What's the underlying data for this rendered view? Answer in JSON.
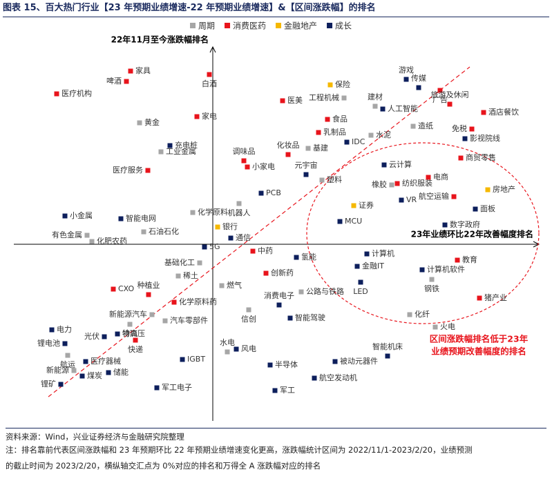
{
  "header": {
    "title": "图表 15、百大热门行业【23 年预期业绩增速-22 年预期业绩增速】&【区间涨跌幅】的排名"
  },
  "chart_data": {
    "type": "scatter",
    "y_label": "22年11月至今涨跌幅排名",
    "x_label": "23年业绩环比22年改善幅度排名",
    "annotation": [
      "区间涨跌幅排名低于23年",
      "业绩预期改善幅度的排名"
    ],
    "xlim": [
      -288,
      472
    ],
    "ylim": [
      -256,
      304
    ],
    "legend": "top",
    "series": [
      {
        "name": "周期",
        "color": "#a6a6a6",
        "labels": [
          "黄金",
          "工业金属",
          "工程机械",
          "建材",
          "造纸",
          "水泥",
          "基建",
          "塑料",
          "橡胶",
          "机器人",
          "化学原料",
          "石油石化",
          "有色金属",
          "化肥农药",
          "基础化工",
          "稀土",
          "燃气",
          "钢铁",
          "公路与铁路",
          "信创",
          "新能源汽车",
          "汽车零部件",
          "化纤",
          "物流",
          "火电",
          "水电",
          "航运",
          "新能源"
        ],
        "x": [
          -106,
          -75,
          190,
          235,
          290,
          229,
          138,
          158,
          259,
          38,
          -29,
          -100,
          -182,
          -175,
          -19,
          -50,
          13,
          317,
          128,
          52,
          -88,
          -69,
          285,
          -120,
          322,
          21,
          -210,
          -201
        ],
        "y": [
          176,
          134,
          212,
          200,
          171,
          158,
          139,
          93,
          86,
          59,
          46,
          18,
          13,
          4,
          -27,
          -46,
          -60,
          -51,
          -69,
          -95,
          -102,
          -111,
          -102,
          -116,
          -120,
          -156,
          -161,
          -183
        ]
      },
      {
        "name": "消费医药",
        "color": "#e8141c",
        "labels": [
          "家具",
          "啤酒",
          "医疗机构",
          "白酒",
          "家电",
          "医疗服务",
          "调味品",
          "小家电",
          "化妆品",
          "医美",
          "广告",
          "旅游及休闲",
          "酒店餐饮",
          "食品",
          "乳制品",
          "免税",
          "商贸零售",
          "电商",
          "纺织服装",
          "航空运输",
          "中药",
          "教育",
          "创新药",
          "CXO",
          "种植业",
          "化学原料药",
          "猪产业",
          "快递"
        ],
        "x": [
          -119,
          -125,
          -226,
          -5,
          -23,
          -94,
          45,
          50,
          109,
          101,
          329,
          343,
          392,
          166,
          153,
          375,
          359,
          312,
          267,
          349,
          58,
          354,
          77,
          -144,
          -93,
          -56,
          386,
          -112
        ],
        "y": [
          251,
          236,
          218,
          246,
          185,
          107,
          121,
          112,
          130,
          208,
          223,
          203,
          191,
          181,
          162,
          167,
          125,
          97,
          88,
          69,
          -10,
          -23,
          -42,
          -65,
          -73,
          -84,
          -78,
          -139
        ]
      },
      {
        "name": "金融地产",
        "color": "#f5b800",
        "labels": [
          "保险",
          "房地产",
          "证券",
          "银行"
        ],
        "x": [
          170,
          398,
          204,
          7
        ],
        "y": [
          231,
          79,
          56,
          25
        ]
      },
      {
        "name": "成长",
        "color": "#0d1f5c",
        "labels": [
          "充电桩",
          "元宇宙",
          "人工智能",
          "游戏",
          "传媒",
          "影视院线",
          "IDC",
          "云计算",
          "VR",
          "面板",
          "数字政府",
          "MCU",
          "PCB",
          "通信",
          "小金属",
          "智能电网",
          "5G",
          "氢能",
          "计算机",
          "金融IT",
          "计算机软件",
          "LED",
          "消费电子",
          "智能驾驶",
          "电力",
          "特高压",
          "光伏",
          "锂电池",
          "风电",
          "医疗器械",
          "IGBT",
          "智能机床",
          "被动元器件",
          "半导体",
          "煤炭",
          "储能",
          "航空发动机",
          "军工电子",
          "军工",
          "锂矿"
        ],
        "x": [
          -62,
          135,
          246,
          280,
          298,
          365,
          194,
          248,
          273,
          380,
          336,
          184,
          70,
          26,
          -214,
          -133,
          -12,
          121,
          223,
          209,
          303,
          214,
          96,
          112,
          -233,
          -138,
          -157,
          -214,
          34,
          -184,
          -44,
          253,
          177,
          83,
          -189,
          -151,
          147,
          -81,
          90,
          -220
        ],
        "y": [
          143,
          101,
          196,
          239,
          227,
          153,
          148,
          115,
          64,
          51,
          28,
          33,
          74,
          9,
          41,
          37,
          -4,
          -19,
          -14,
          -32,
          -37,
          -55,
          -88,
          -107,
          -124,
          -130,
          -134,
          -144,
          -152,
          -170,
          -167,
          -162,
          -170,
          -175,
          -191,
          -186,
          -194,
          -208,
          -212,
          -203
        ]
      }
    ]
  },
  "footer": {
    "source": "资料来源：Wind，兴业证券经济与金融研究院整理",
    "note": [
      "注：排名靠前代表区间涨跌幅和 23 年预期环比 22 年预期业绩增速变化更高，涨跌幅统计区间为 2022/11/1-2023/2/20，业绩预测",
      "的截止时间为 2023/2/20，横纵轴交汇点为 0%对应的排名和万得全 A 涨跌幅对应的排名"
    ]
  }
}
